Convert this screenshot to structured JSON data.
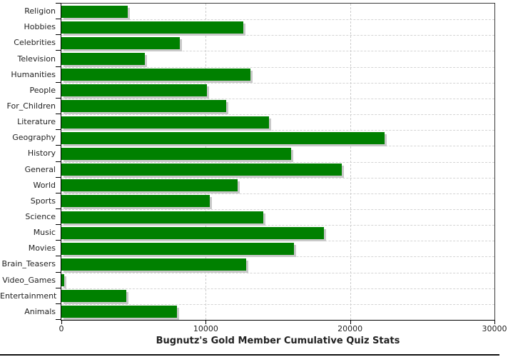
{
  "chart_data": {
    "type": "bar",
    "orientation": "horizontal",
    "title": "Bugnutz's Gold Member Cumulative Quiz Stats",
    "categories": [
      "Religion",
      "Hobbies",
      "Celebrities",
      "Television",
      "Humanities",
      "People",
      "For_Children",
      "Literature",
      "Geography",
      "History",
      "General",
      "World",
      "Sports",
      "Science",
      "Music",
      "Movies",
      "Brain_Teasers",
      "Video_Games",
      "Entertainment",
      "Animals"
    ],
    "values": [
      4600,
      12600,
      8200,
      5800,
      13100,
      10100,
      11400,
      14400,
      22400,
      15900,
      19400,
      12200,
      10300,
      14000,
      18200,
      16100,
      12800,
      200,
      4500,
      8000
    ],
    "xlabel": "",
    "ylabel": "",
    "xlim": [
      0,
      30000
    ],
    "x_ticks": [
      0,
      10000,
      20000,
      30000
    ],
    "x_tick_labels": [
      "0",
      "10000",
      "20000",
      "30000"
    ],
    "grid": true,
    "legend": "none",
    "bar_color": "#008000",
    "bar_shadow_color": "#c9c9c9",
    "grid_color": "#cccccc",
    "axis_color": "#000000",
    "text_color": "#222222",
    "background_color": "#ffffff"
  }
}
